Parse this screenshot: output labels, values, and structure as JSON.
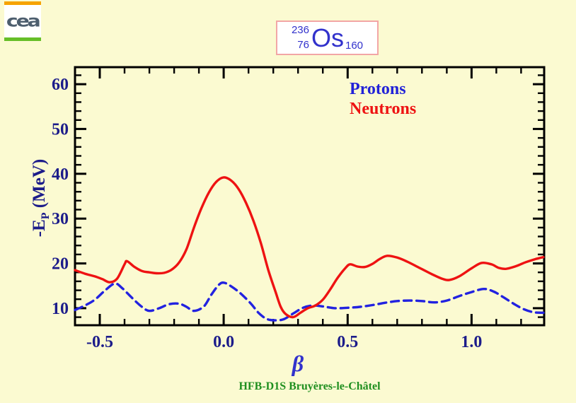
{
  "page": {
    "background": "#FBFAD1"
  },
  "logo": {
    "text": "cea",
    "top_bar_color": "#F6A300",
    "bottom_bar_color": "#66BE28",
    "text_color": "#4D5E6E"
  },
  "title_box": {
    "mass_number": "236",
    "atomic_number": "76",
    "element": "Os",
    "neutron_number": "160",
    "text_color": "#3232CC",
    "border_color": "#F2A6A6",
    "background": "#FFFFFF"
  },
  "legend": {
    "items": [
      {
        "label": "Protons",
        "color": "#2222D8"
      },
      {
        "label": "Neutrons",
        "color": "#EE1212"
      }
    ]
  },
  "footer": {
    "text": "HFB-D1S Bruyères-le-Châtel",
    "color": "#1F8F1F"
  },
  "chart_data": {
    "type": "line",
    "title": "",
    "xlabel": "β",
    "ylabel": "-Eₚ (MeV)",
    "ylabel_parts": {
      "prefix": "-E",
      "sub": "P",
      "suffix": " (MeV)"
    },
    "xlim": [
      -0.6,
      1.293
    ],
    "ylim": [
      6.2,
      63.8
    ],
    "grid": false,
    "axis_color": "#000000",
    "tick_label_color": "#1C1C8A",
    "x_ticks": [
      {
        "v": -0.5,
        "label": "-0.5"
      },
      {
        "v": 0.0,
        "label": "0.0"
      },
      {
        "v": 0.5,
        "label": "0.5"
      },
      {
        "v": 1.0,
        "label": "1.0"
      }
    ],
    "x_minor_step": 0.1,
    "y_ticks": [
      {
        "v": 10,
        "label": "10"
      },
      {
        "v": 20,
        "label": "20"
      },
      {
        "v": 30,
        "label": "30"
      },
      {
        "v": 40,
        "label": "40"
      },
      {
        "v": 50,
        "label": "50"
      },
      {
        "v": 60,
        "label": "60"
      }
    ],
    "y_minor_step": 2,
    "series": [
      {
        "name": "Protons",
        "color": "#2222E0",
        "style": "dashed",
        "points": [
          [
            -0.6,
            9.6
          ],
          [
            -0.56,
            10.6
          ],
          [
            -0.52,
            11.9
          ],
          [
            -0.48,
            13.9
          ],
          [
            -0.44,
            15.5
          ],
          [
            -0.41,
            14.5
          ],
          [
            -0.37,
            12.3
          ],
          [
            -0.33,
            10.3
          ],
          [
            -0.3,
            9.4
          ],
          [
            -0.26,
            10.0
          ],
          [
            -0.22,
            10.9
          ],
          [
            -0.18,
            11.0
          ],
          [
            -0.15,
            10.3
          ],
          [
            -0.12,
            9.4
          ],
          [
            -0.08,
            10.4
          ],
          [
            -0.05,
            13.0
          ],
          [
            -0.02,
            15.2
          ],
          [
            0.0,
            15.7
          ],
          [
            0.03,
            14.9
          ],
          [
            0.07,
            13.2
          ],
          [
            0.11,
            11.0
          ],
          [
            0.14,
            9.0
          ],
          [
            0.17,
            7.7
          ],
          [
            0.2,
            7.3
          ],
          [
            0.24,
            7.5
          ],
          [
            0.28,
            8.8
          ],
          [
            0.32,
            10.1
          ],
          [
            0.36,
            10.6
          ],
          [
            0.4,
            10.4
          ],
          [
            0.45,
            10.0
          ],
          [
            0.5,
            10.1
          ],
          [
            0.55,
            10.3
          ],
          [
            0.6,
            10.7
          ],
          [
            0.65,
            11.2
          ],
          [
            0.7,
            11.6
          ],
          [
            0.75,
            11.7
          ],
          [
            0.8,
            11.6
          ],
          [
            0.85,
            11.3
          ],
          [
            0.9,
            11.7
          ],
          [
            0.95,
            12.7
          ],
          [
            1.0,
            13.6
          ],
          [
            1.05,
            14.3
          ],
          [
            1.09,
            13.7
          ],
          [
            1.13,
            12.4
          ],
          [
            1.17,
            11.0
          ],
          [
            1.21,
            9.8
          ],
          [
            1.25,
            9.1
          ],
          [
            1.29,
            9.0
          ]
        ]
      },
      {
        "name": "Neutrons",
        "color": "#EE1212",
        "style": "solid",
        "points": [
          [
            -0.6,
            18.5
          ],
          [
            -0.56,
            17.7
          ],
          [
            -0.52,
            17.1
          ],
          [
            -0.49,
            16.5
          ],
          [
            -0.46,
            15.8
          ],
          [
            -0.43,
            16.6
          ],
          [
            -0.4,
            19.8
          ],
          [
            -0.39,
            20.5
          ],
          [
            -0.36,
            19.2
          ],
          [
            -0.33,
            18.3
          ],
          [
            -0.3,
            18.0
          ],
          [
            -0.27,
            17.8
          ],
          [
            -0.24,
            17.9
          ],
          [
            -0.21,
            18.6
          ],
          [
            -0.18,
            20.2
          ],
          [
            -0.15,
            23.2
          ],
          [
            -0.12,
            28.0
          ],
          [
            -0.09,
            32.3
          ],
          [
            -0.06,
            35.8
          ],
          [
            -0.03,
            38.2
          ],
          [
            0.0,
            39.2
          ],
          [
            0.03,
            38.5
          ],
          [
            0.06,
            36.6
          ],
          [
            0.09,
            33.5
          ],
          [
            0.12,
            29.5
          ],
          [
            0.15,
            24.5
          ],
          [
            0.18,
            18.5
          ],
          [
            0.21,
            13.5
          ],
          [
            0.23,
            10.3
          ],
          [
            0.25,
            8.7
          ],
          [
            0.28,
            8.0
          ],
          [
            0.31,
            9.0
          ],
          [
            0.34,
            10.0
          ],
          [
            0.37,
            10.6
          ],
          [
            0.4,
            11.9
          ],
          [
            0.43,
            14.2
          ],
          [
            0.46,
            16.8
          ],
          [
            0.49,
            18.9
          ],
          [
            0.51,
            19.8
          ],
          [
            0.54,
            19.3
          ],
          [
            0.57,
            19.2
          ],
          [
            0.6,
            19.9
          ],
          [
            0.63,
            21.0
          ],
          [
            0.66,
            21.7
          ],
          [
            0.7,
            21.3
          ],
          [
            0.74,
            20.4
          ],
          [
            0.79,
            19.0
          ],
          [
            0.84,
            17.6
          ],
          [
            0.88,
            16.6
          ],
          [
            0.91,
            16.3
          ],
          [
            0.95,
            17.1
          ],
          [
            1.0,
            18.9
          ],
          [
            1.04,
            20.1
          ],
          [
            1.08,
            19.8
          ],
          [
            1.11,
            19.0
          ],
          [
            1.14,
            18.8
          ],
          [
            1.18,
            19.4
          ],
          [
            1.22,
            20.3
          ],
          [
            1.26,
            21.0
          ],
          [
            1.29,
            21.4
          ]
        ]
      }
    ]
  }
}
